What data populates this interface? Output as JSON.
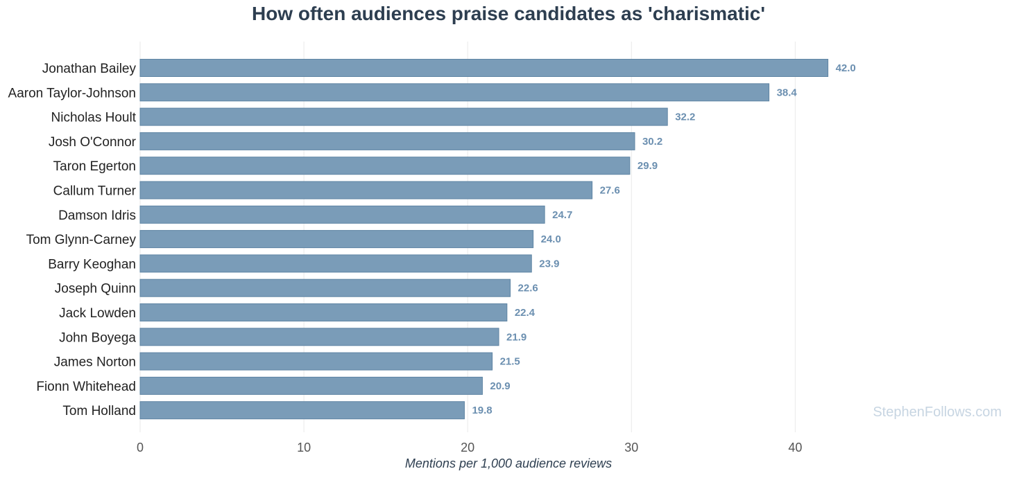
{
  "watermark": "StephenFollows.com",
  "colors": {
    "bar": "#7a9cb8",
    "bar_stroke": "#5e84a3",
    "value_label": "#6b8fb0",
    "grid": "#e8e8e8",
    "title": "#2d3e50",
    "watermark": "#c7d5e2"
  },
  "chart_data": {
    "type": "bar",
    "orientation": "horizontal",
    "title": "How often audiences praise candidates as 'charismatic'",
    "xlabel": "Mentions per 1,000 audience reviews",
    "ylabel": "",
    "xlim": [
      0,
      46
    ],
    "xticks": [
      0,
      10,
      20,
      30,
      40
    ],
    "grid": "vertical",
    "categories": [
      "Jonathan Bailey",
      "Aaron Taylor-Johnson",
      "Nicholas Hoult",
      "Josh O'Connor",
      "Taron Egerton",
      "Callum Turner",
      "Damson Idris",
      "Tom Glynn-Carney",
      "Barry Keoghan",
      "Joseph Quinn",
      "Jack Lowden",
      "John Boyega",
      "James Norton",
      "Fionn Whitehead",
      "Tom Holland"
    ],
    "values": [
      42.0,
      38.4,
      32.2,
      30.2,
      29.9,
      27.6,
      24.7,
      24.0,
      23.9,
      22.6,
      22.4,
      21.9,
      21.5,
      20.9,
      19.8
    ],
    "value_labels": [
      "42.0",
      "38.4",
      "32.2",
      "30.2",
      "29.9",
      "27.6",
      "24.7",
      "24.0",
      "23.9",
      "22.6",
      "22.4",
      "21.9",
      "21.5",
      "20.9",
      "19.8"
    ]
  }
}
